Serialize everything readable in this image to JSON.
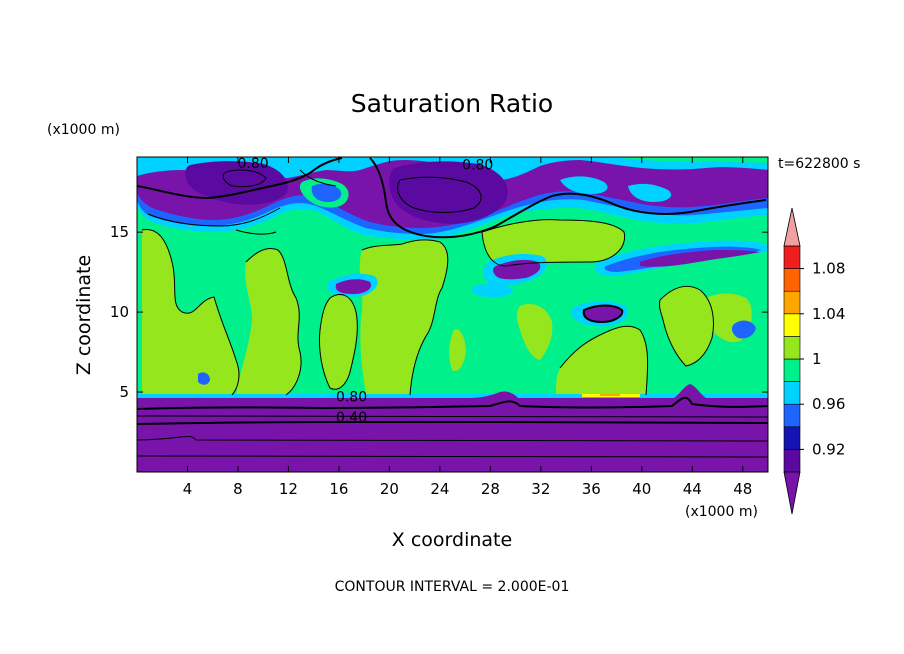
{
  "chart_data": {
    "type": "heatmap",
    "title": "Saturation Ratio",
    "xlabel": "X coordinate",
    "ylabel": "Z coordinate",
    "x_unit": "(x1000 m)",
    "y_unit": "(x1000 m)",
    "time_label": "t=622800 s",
    "footer": "CONTOUR INTERVAL = 2.000E-01",
    "xlim": [
      0,
      50
    ],
    "ylim": [
      0,
      19.7
    ],
    "x_ticks": [
      4,
      8,
      12,
      16,
      20,
      24,
      28,
      32,
      36,
      40,
      44,
      48
    ],
    "y_ticks": [
      5,
      10,
      15
    ],
    "colorbar": {
      "bands": [
        {
          "from": 0.9,
          "to": 0.92,
          "color": "#5a0aa0"
        },
        {
          "from": 0.92,
          "to": 0.94,
          "color": "#1414b4"
        },
        {
          "from": 0.94,
          "to": 0.96,
          "color": "#1e64ff"
        },
        {
          "from": 0.96,
          "to": 0.98,
          "color": "#00d2ff"
        },
        {
          "from": 0.98,
          "to": 1.0,
          "color": "#00f08c"
        },
        {
          "from": 1.0,
          "to": 1.02,
          "color": "#96e61e"
        },
        {
          "from": 1.02,
          "to": 1.04,
          "color": "#ffff00"
        },
        {
          "from": 1.04,
          "to": 1.06,
          "color": "#ffa500"
        },
        {
          "from": 1.06,
          "to": 1.08,
          "color": "#ff6400"
        },
        {
          "from": 1.08,
          "to": 1.1,
          "color": "#f01e1e"
        }
      ],
      "below_color": "#7814aa",
      "above_color": "#f0a0a0",
      "tick_labels": [
        "0.92",
        "0.96",
        "1",
        "1.04",
        "1.08"
      ]
    },
    "contour_labels": [
      {
        "text": "0.80",
        "x": 9.2,
        "y": 19.2
      },
      {
        "text": "0.80",
        "x": 27,
        "y": 19.1
      },
      {
        "text": "0.80",
        "x": 17,
        "y": 4.6
      },
      {
        "text": "0.40",
        "x": 17,
        "y": 3.3
      }
    ]
  }
}
